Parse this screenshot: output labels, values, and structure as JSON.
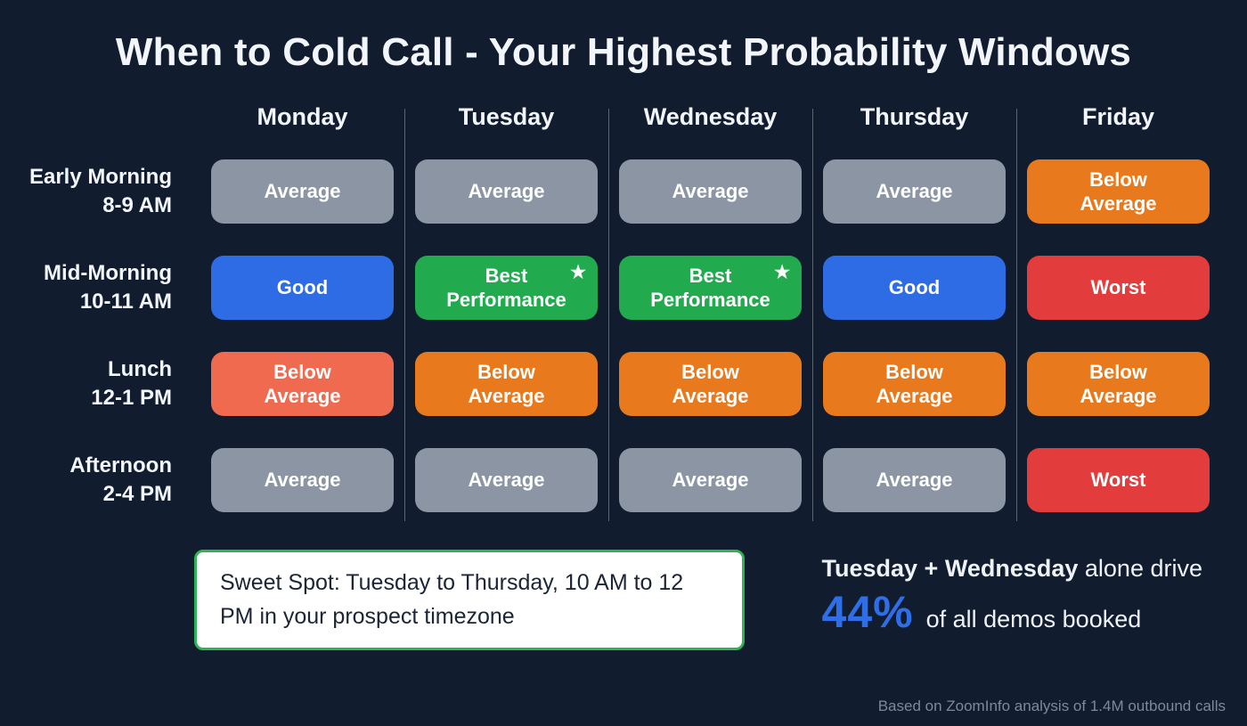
{
  "title": "When to Cold Call - Your Highest Probability Windows",
  "palette": {
    "background": "#111c2f",
    "average": "#8b95a4",
    "good": "#2e6ce6",
    "best": "#22ab4e",
    "below_average": "#e8791c",
    "below_average_alt": "#ef6a4e",
    "worst": "#e23c3c",
    "accent_blue": "#2e6fe8",
    "sweet_border": "#2fb455"
  },
  "table": {
    "columns": [
      "Monday",
      "Tuesday",
      "Wednesday",
      "Thursday",
      "Friday"
    ],
    "rows": [
      {
        "label": [
          "Early Morning",
          "8-9 AM"
        ],
        "cells": [
          {
            "label": "Average",
            "variant": "average"
          },
          {
            "label": "Average",
            "variant": "average"
          },
          {
            "label": "Average",
            "variant": "average"
          },
          {
            "label": "Average",
            "variant": "average"
          },
          {
            "label": "Below Average",
            "variant": "below_average"
          }
        ]
      },
      {
        "label": [
          "Mid-Morning",
          "10-11 AM"
        ],
        "cells": [
          {
            "label": "Good",
            "variant": "good"
          },
          {
            "label": "Best Performance",
            "variant": "best",
            "star": true
          },
          {
            "label": "Best Performance",
            "variant": "best",
            "star": true
          },
          {
            "label": "Good",
            "variant": "good"
          },
          {
            "label": "Worst",
            "variant": "worst"
          }
        ]
      },
      {
        "label": [
          "Lunch",
          "12-1 PM"
        ],
        "cells": [
          {
            "label": "Below Average",
            "variant": "below_average_alt"
          },
          {
            "label": "Below Average",
            "variant": "below_average"
          },
          {
            "label": "Below Average",
            "variant": "below_average"
          },
          {
            "label": "Below Average",
            "variant": "below_average"
          },
          {
            "label": "Below Average",
            "variant": "below_average"
          }
        ]
      },
      {
        "label": [
          "Afternoon",
          "2-4 PM"
        ],
        "cells": [
          {
            "label": "Average",
            "variant": "average"
          },
          {
            "label": "Average",
            "variant": "average"
          },
          {
            "label": "Average",
            "variant": "average"
          },
          {
            "label": "Average",
            "variant": "average"
          },
          {
            "label": "Worst",
            "variant": "worst"
          }
        ]
      }
    ]
  },
  "sweet_spot": "Sweet Spot: Tuesday to Thursday, 10 AM to 12 PM in your prospect timezone",
  "stats": {
    "lead_bold": "Tuesday + Wednesday",
    "lead_rest": "alone drive",
    "percent": "44%",
    "percent_suffix": "of all demos booked"
  },
  "footer": "Based on ZoomInfo analysis of 1.4M outbound calls",
  "chart_data": {
    "type": "heatmap",
    "title": "When to Cold Call - Your Highest Probability Windows",
    "x_categories": [
      "Monday",
      "Tuesday",
      "Wednesday",
      "Thursday",
      "Friday"
    ],
    "y_categories": [
      "Early Morning 8-9 AM",
      "Mid-Morning 10-11 AM",
      "Lunch 12-1 PM",
      "Afternoon 2-4 PM"
    ],
    "values": [
      [
        "Average",
        "Average",
        "Average",
        "Average",
        "Below Average"
      ],
      [
        "Good",
        "Best Performance",
        "Best Performance",
        "Good",
        "Worst"
      ],
      [
        "Below Average",
        "Below Average",
        "Below Average",
        "Below Average",
        "Below Average"
      ],
      [
        "Average",
        "Average",
        "Average",
        "Average",
        "Worst"
      ]
    ],
    "legend": [
      "Best Performance",
      "Good",
      "Average",
      "Below Average",
      "Worst"
    ],
    "annotations": [
      "Sweet Spot: Tuesday to Thursday, 10 AM to 12 PM in your prospect timezone",
      "Tuesday + Wednesday alone drive 44% of all demos booked",
      "Based on ZoomInfo analysis of 1.4M outbound calls"
    ]
  }
}
